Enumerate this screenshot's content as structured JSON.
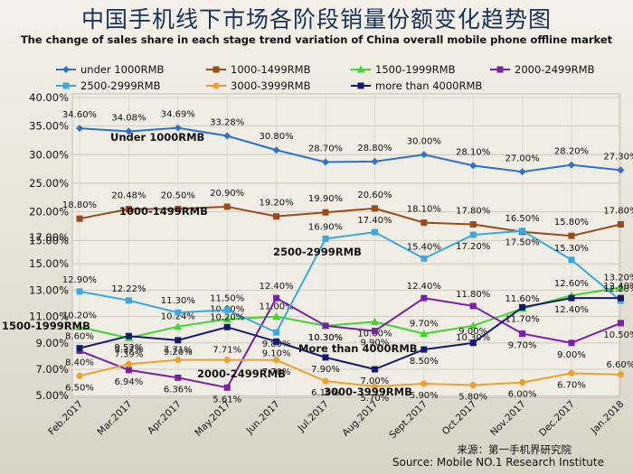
{
  "title": "中国手机线下市场各阶段销量份额变化趋势图",
  "subtitle": "The change of sales share in each stage trend variation of China overall mobile phone offline market",
  "source_cn": "来源：第一手机界研究院",
  "source_en": "Source: Mobile NO.1 Research Institute",
  "chart_data": {
    "type": "line",
    "categories": [
      "Feb.2017",
      "Mar.2017",
      "Apr.2017",
      "May.2017",
      "Jun.2017",
      "Jul.2017",
      "Aug.2017",
      "Sept.2017",
      "Oct.2017",
      "Nov.2017",
      "Dec.2017",
      "Jan.2018"
    ],
    "y_ticks_upper": [
      "40.00%",
      "35.00%",
      "30.00%",
      "25.00%",
      "20.00%",
      "15.00%"
    ],
    "y_ticks_lower": [
      "17.00%",
      "15.00%",
      "13.00%",
      "11.00%",
      "9.00%",
      "7.00%",
      "5.00%"
    ],
    "grid": true,
    "legend_position": "top",
    "series": [
      {
        "name": "under 1000RMB",
        "color": "#2f6fce",
        "axis": "upper",
        "values": [
          34.6,
          34.08,
          34.69,
          33.28,
          30.8,
          28.7,
          28.8,
          30.0,
          28.1,
          27.0,
          28.2,
          27.3
        ],
        "labels": [
          "34.60%",
          "34.08%",
          "34.69%",
          "33.28%",
          "30.80%",
          "28.70%",
          "28.80%",
          "30.00%",
          "28.10%",
          "27.00%",
          "28.20%",
          "27.30%"
        ]
      },
      {
        "name": "1000-1499RMB",
        "color": "#9c4a1c",
        "axis": "upper",
        "values": [
          18.8,
          20.48,
          20.5,
          20.9,
          19.2,
          19.9,
          20.6,
          18.1,
          17.8,
          16.5,
          15.8,
          17.8
        ],
        "labels": [
          "18.80%",
          "20.48%",
          "20.50%",
          "20.90%",
          "19.20%",
          "19.90%",
          "20.60%",
          "18.10%",
          "17.80%",
          "16.50%",
          "15.80%",
          "17.80%"
        ]
      },
      {
        "name": "1500-1999RMB",
        "color": "#3fd62f",
        "axis": "lower",
        "values": [
          10.2,
          9.37,
          10.24,
          10.8,
          11.0,
          10.3,
          10.6,
          9.7,
          10.3,
          11.6,
          12.6,
          13.2
        ],
        "labels": [
          "10.20%",
          "9.37%",
          "10.24%",
          "10.80%",
          "11.00%",
          "10.30%",
          "10.60%",
          "9.70%",
          "10.30%",
          "11.60%",
          "12.60%",
          "13.20%"
        ]
      },
      {
        "name": "2000-2499RMB",
        "color": "#7a1fa8",
        "axis": "lower",
        "values": [
          8.4,
          6.94,
          6.36,
          5.61,
          12.4,
          10.3,
          9.9,
          12.4,
          11.8,
          9.7,
          9.0,
          10.5
        ],
        "labels": [
          "8.40%",
          "6.94%",
          "6.36%",
          "5.61%",
          "12.40%",
          "10.30%",
          "9.90%",
          "12.40%",
          "11.80%",
          "9.70%",
          "9.00%",
          "10.50%"
        ]
      },
      {
        "name": "2500-2999RMB",
        "color": "#3aa9e0",
        "axis": "lower",
        "values": [
          12.9,
          12.22,
          11.3,
          11.5,
          9.8,
          16.9,
          17.4,
          15.4,
          17.2,
          17.5,
          15.3,
          12.2
        ],
        "labels": [
          "12.90%",
          "12.22%",
          "11.30%",
          "11.50%",
          "9.80%",
          "16.90%",
          "17.40%",
          "15.40%",
          "17.20%",
          "17.50%",
          "15.30%",
          "12.20%"
        ]
      },
      {
        "name": "3000-3999RMB",
        "color": "#f0a030",
        "axis": "lower",
        "values": [
          6.5,
          7.39,
          7.71,
          7.71,
          7.7,
          6.1,
          5.7,
          5.9,
          5.8,
          6.0,
          6.7,
          6.6
        ],
        "labels": [
          "6.50%",
          "7.39%",
          "7.71%",
          "7.71%",
          "7.70%",
          "6.10%",
          "5.70%",
          "5.90%",
          "5.80%",
          "6.00%",
          "6.70%",
          "6.60%"
        ]
      },
      {
        "name": "more than 4000RMB",
        "color": "#141a6e",
        "axis": "lower",
        "values": [
          8.6,
          9.52,
          9.2,
          10.2,
          9.1,
          7.9,
          7.0,
          8.5,
          9.0,
          11.7,
          12.4,
          12.4
        ],
        "labels": [
          "8.60%",
          "9.52%",
          "9.20%",
          "10.20%",
          "9.10%",
          "7.90%",
          "7.00%",
          "8.50%",
          "9.00%",
          "11.70%",
          "12.40%",
          "12.40%"
        ]
      }
    ],
    "annotations": [
      "Under 1000RMB",
      "1000-1499RMB",
      "2500-2999RMB",
      "1500-1999RMB",
      "More than 4000RMB",
      "2000-2499RMB",
      "3000-3999RMB"
    ]
  }
}
